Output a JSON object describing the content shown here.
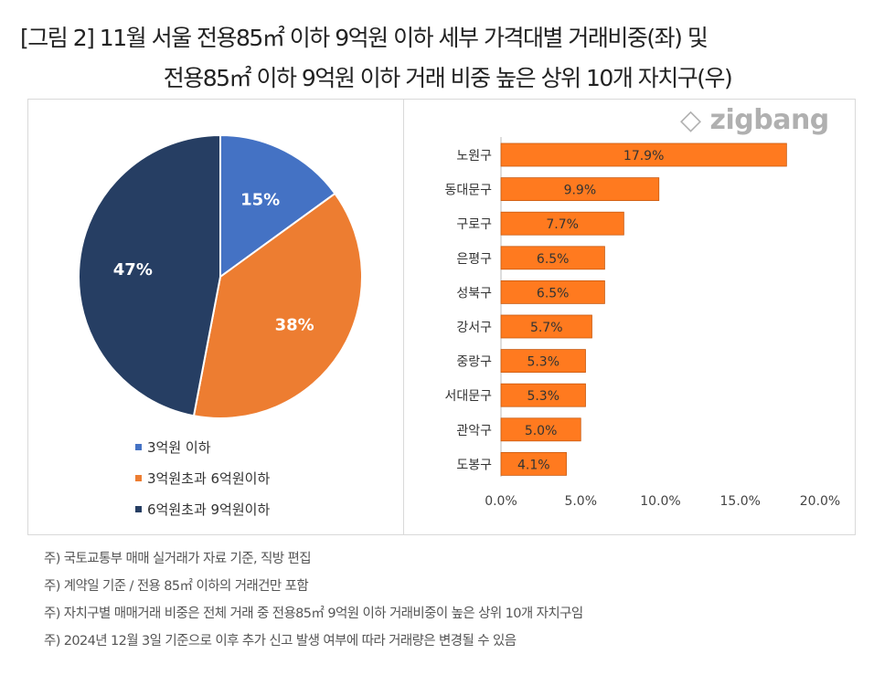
{
  "title_line1": "[그림 2] 11월 서울 전용85㎡ 이하 9억원 이하 세부 가격대별 거래비중(좌) 및",
  "title_line2": "전용85㎡ 이하 9억원 이하 거래 비중 높은 상위 10개 자치구(우)",
  "logo": "zigbang",
  "notes": [
    "주) 국토교통부 매매 실거래가 자료 기준, 직방 편집",
    "주) 계약일 기준 / 전용 85㎡ 이하의 거래건만 포함",
    "주) 자치구별 매매거래 비중은 전체 거래 중 전용85㎡  9억원 이하 거래비중이 높은 상위 10개 자치구임",
    "주) 2024년 12월 3일 기준으로 이후 추가 신고 발생 여부에 따라 거래량은 변경될 수 있음"
  ],
  "chart_data": [
    {
      "type": "pie",
      "categories": [
        "3억원 이하",
        "3억원초과 6억원이하",
        "6억원초과 9억원이하"
      ],
      "values": [
        15,
        38,
        47
      ],
      "labels": [
        "15%",
        "38%",
        "47%"
      ],
      "colors": [
        "#4472C4",
        "#ED7D31",
        "#263E63"
      ],
      "legend": "bottom-left"
    },
    {
      "type": "bar",
      "orientation": "horizontal",
      "categories": [
        "노원구",
        "동대문구",
        "구로구",
        "은평구",
        "성북구",
        "강서구",
        "중랑구",
        "서대문구",
        "관악구",
        "도봉구"
      ],
      "values": [
        17.9,
        9.9,
        7.7,
        6.5,
        6.5,
        5.7,
        5.3,
        5.3,
        5.0,
        4.1
      ],
      "labels": [
        "17.9%",
        "9.9%",
        "7.7%",
        "6.5%",
        "6.5%",
        "5.7%",
        "5.3%",
        "5.3%",
        "5.0%",
        "4.1%"
      ],
      "xlim": [
        0,
        20
      ],
      "xticks": [
        "0.0%",
        "5.0%",
        "10.0%",
        "15.0%",
        "20.0%"
      ],
      "color": "#FF7A1F",
      "grid": false
    }
  ]
}
